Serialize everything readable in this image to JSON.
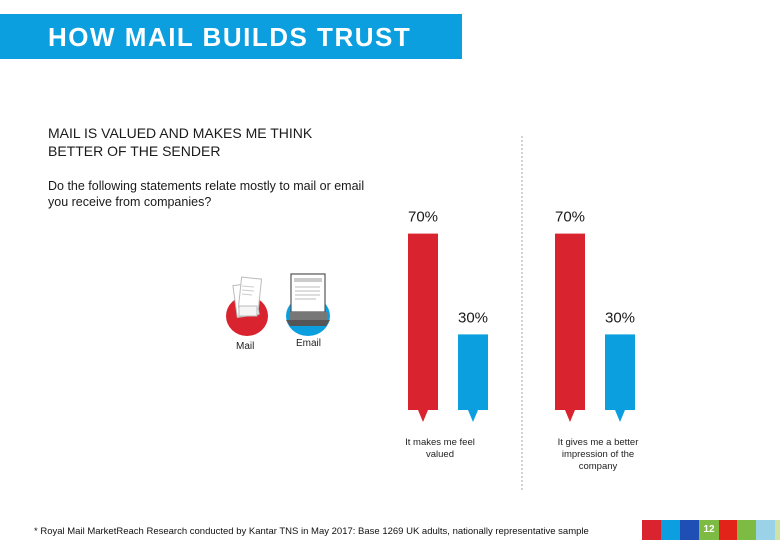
{
  "header": {
    "title": "HOW MAIL BUILDS TRUST"
  },
  "heading": "MAIL IS VALUED AND MAKES ME THINK BETTER OF THE SENDER",
  "question": "Do the following statements relate mostly to mail or email you receive from companies?",
  "legend": {
    "mail": "Mail",
    "email": "Email"
  },
  "colors": {
    "mail": "#d9232e",
    "email": "#0b9fe0",
    "title_bg": "#0b9fe0"
  },
  "chart_data": {
    "type": "bar",
    "categories": [
      "It makes me feel valued",
      "It gives me a better impression of the company"
    ],
    "series": [
      {
        "name": "Mail",
        "values": [
          70,
          70
        ]
      },
      {
        "name": "Email",
        "values": [
          30,
          30
        ]
      }
    ],
    "value_labels": [
      [
        "70%",
        "30%"
      ],
      [
        "70%",
        "30%"
      ]
    ],
    "ylim": [
      0,
      100
    ],
    "grid": false,
    "legend": "left"
  },
  "footer": "* Royal Mail MarketReach Research conducted by Kantar TNS in May 2017: Base 1269 UK adults, nationally representative sample",
  "page_number": "12",
  "color_strip": [
    "#d9232e",
    "#0b9fe0",
    "#1f4fb4",
    "#f39c12",
    "#e2231a",
    "#7dbb42",
    "#9ad3e8",
    "#cfe3a6",
    "#8a8a8a"
  ]
}
